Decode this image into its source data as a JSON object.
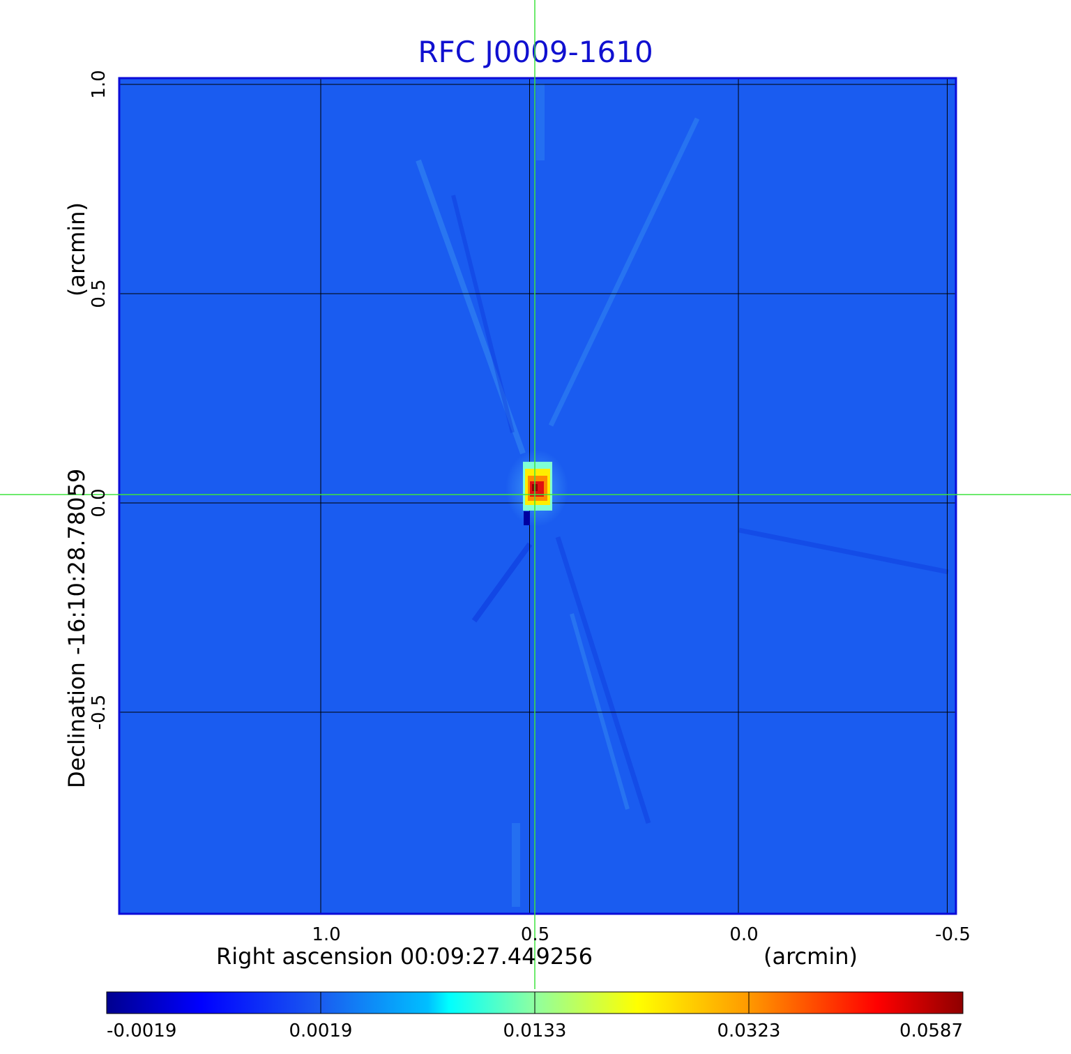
{
  "chart_data": {
    "type": "heatmap",
    "title": "RFC J0009-1610",
    "xlabel": "Right ascension  00:09:27.449256",
    "xunit": "(arcmin)",
    "ylabel": "Declination  -16:10:28.78059",
    "yunit": "(arcmin)",
    "x_ticks": [
      "1.0",
      "0.5",
      "0.0",
      "-0.5"
    ],
    "y_ticks": [
      "1.0",
      "0.5",
      "0.0",
      "-0.5"
    ],
    "xlim": [
      1.5,
      -0.52
    ],
    "ylim": [
      -1.0,
      1.0
    ],
    "grid": true,
    "crosshair": [
      0.5,
      0.0
    ],
    "colormap": "jet",
    "colorbar_ticks": [
      "-0.0019",
      "0.0019",
      "0.0133",
      "0.0323",
      "0.0587"
    ],
    "value_range": [
      -0.0019,
      0.0587
    ],
    "background_color": "#1a5cf0",
    "peak": {
      "x": 0.5,
      "y": 0.0,
      "value": 0.0587
    }
  }
}
